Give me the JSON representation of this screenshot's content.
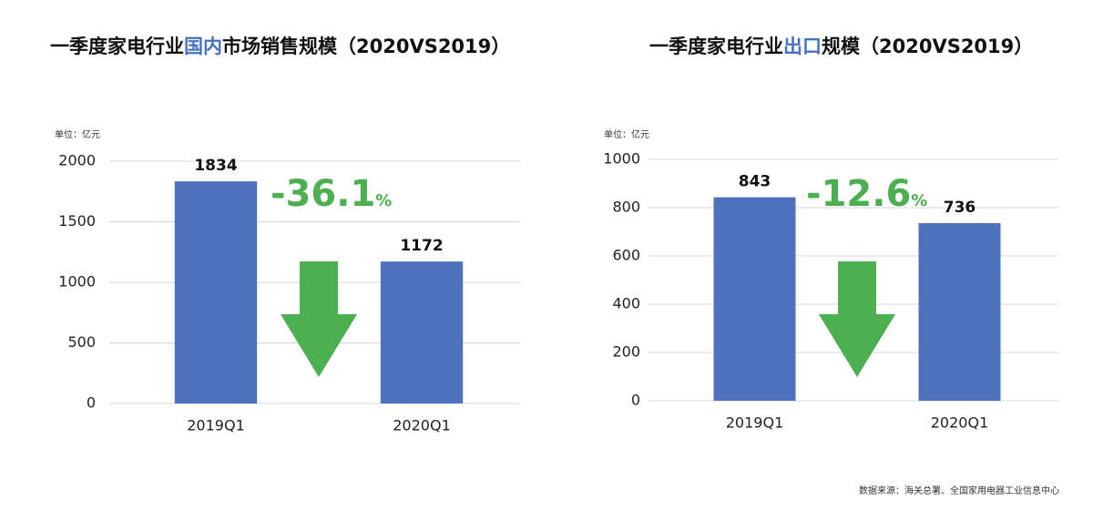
{
  "chart_data": [
    {
      "type": "bar",
      "title": [
        {
          "text": "一季度家电行业",
          "color": "#111111"
        },
        {
          "text": "国内",
          "color": "#4472c4"
        },
        {
          "text": "市场销售规模（2020VS2019）",
          "color": "#111111"
        }
      ],
      "unit_label": "单位：亿元",
      "categories": [
        "2019Q1",
        "2020Q1"
      ],
      "values": [
        1834,
        1172
      ],
      "color": "#4e72be",
      "ylim": [
        0,
        2000
      ],
      "yticks": [
        0,
        500,
        1000,
        1500,
        2000
      ],
      "grid": true,
      "change_text": "-36.1",
      "change_unit": "%",
      "change_color": "#4caf50"
    },
    {
      "type": "bar",
      "title": [
        {
          "text": "一季度家电行业",
          "color": "#111111"
        },
        {
          "text": "出口",
          "color": "#4472c4"
        },
        {
          "text": "规模（2020VS2019）",
          "color": "#111111"
        }
      ],
      "unit_label": "单位：亿元",
      "categories": [
        "2019Q1",
        "2020Q1"
      ],
      "values": [
        843,
        736
      ],
      "color": "#4e72be",
      "ylim": [
        0,
        1000
      ],
      "yticks": [
        0,
        200,
        400,
        600,
        800,
        1000
      ],
      "grid": true,
      "change_text": "-12.6",
      "change_unit": "%",
      "change_color": "#4caf50"
    }
  ],
  "source": "数据来源：海关总署、全国家用电器工业信息中心"
}
